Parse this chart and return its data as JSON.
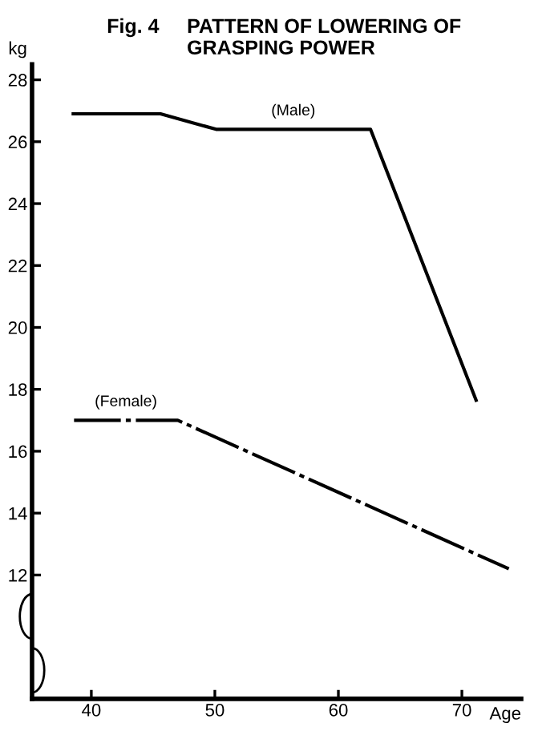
{
  "chart_data": {
    "type": "line",
    "title": "Fig. 4",
    "subtitle": "PATTERN OF LOWERING OF GRASPING POWER",
    "xlabel": "Age",
    "ylabel": "kg",
    "series": [
      {
        "name": "(Male)",
        "color": "#000000",
        "x": [
          38.4,
          45.6,
          50.1,
          62.6,
          71.2
        ],
        "values": [
          26.9,
          26.9,
          26.4,
          26.4,
          17.6
        ],
        "line_style": "solid"
      },
      {
        "name": "(Female)",
        "color": "#000000",
        "x": [
          38.6,
          47.0,
          73.8
        ],
        "values": [
          17.0,
          17.0,
          12.2
        ],
        "line_style": "dashed"
      }
    ],
    "xlim": [
      35.2,
      74.8
    ],
    "ylim": [
      8,
      28.5
    ],
    "xticks": [
      40,
      50,
      60,
      70
    ],
    "yticks": [
      12,
      14,
      16,
      18,
      20,
      22,
      24,
      26,
      28
    ],
    "grid": false,
    "legend": false,
    "marker": "none"
  }
}
